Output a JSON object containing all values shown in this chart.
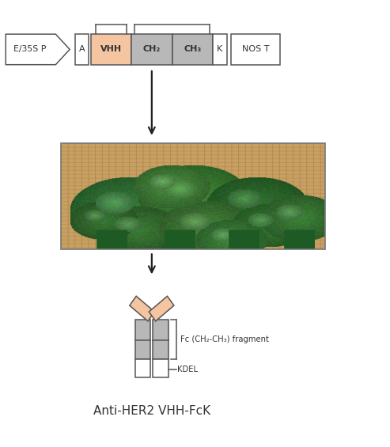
{
  "bg_color": "#ffffff",
  "vhh_color": "#f5c4a0",
  "ch_color": "#b8b8b8",
  "box_edge_color": "#555555",
  "arrow_color": "#222222",
  "title": "Anti-HER2 VHH-FcK",
  "fc_label": "Fc (CH₂-CH₃) fragment",
  "kdel_label": "KDEL",
  "promoter_label": "E/35S P",
  "a_label": "A",
  "vhh_label": "VHH",
  "ch2_label": "CH₂",
  "ch3_label": "CH₃",
  "k_label": "K",
  "nost_label": "NOS T",
  "font_color": "#333333",
  "bracket_color": "#555555",
  "xlim": [
    0,
    10
  ],
  "ylim": [
    0,
    10.5
  ]
}
